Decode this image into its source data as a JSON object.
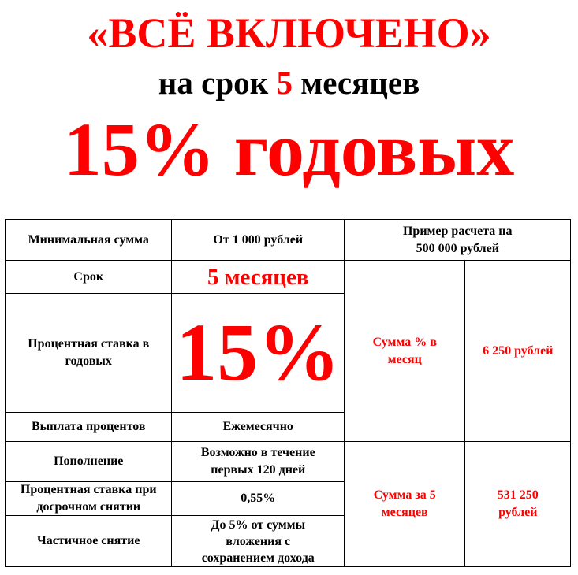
{
  "headline": {
    "line1": "«ВСЁ ВКЛЮЧЕНО»",
    "line2_pre": "на срок ",
    "line2_num": "5",
    "line2_post": " месяцев",
    "line3": "15% годовых"
  },
  "colors": {
    "accent": "#ff0000",
    "text": "#000000"
  },
  "table": {
    "rows": [
      {
        "label": "Минимальная сумма",
        "value": "От 1 000 рублей"
      },
      {
        "label": "Срок",
        "value": "5 месяцев"
      },
      {
        "label": "Процентная ставка в годовых",
        "value": "15%"
      },
      {
        "label": "Выплата процентов",
        "value": "Ежемесячно"
      },
      {
        "label": "Пополнение",
        "value": "Возможно в течение первых 120 дней"
      },
      {
        "label": "Процентная ставка при досрочном снятии",
        "value": "0,55%"
      },
      {
        "label": "Частичное снятие",
        "value": "До 5% от суммы вложения с сохранением дохода"
      }
    ],
    "example": {
      "header": "Пример расчета на 500 000 рублей",
      "monthly_label": "Сумма % в месяц",
      "monthly_value": "6 250 рублей",
      "total_label": "Сумма за 5 месяцев",
      "total_value": "531 250 рублей"
    }
  }
}
